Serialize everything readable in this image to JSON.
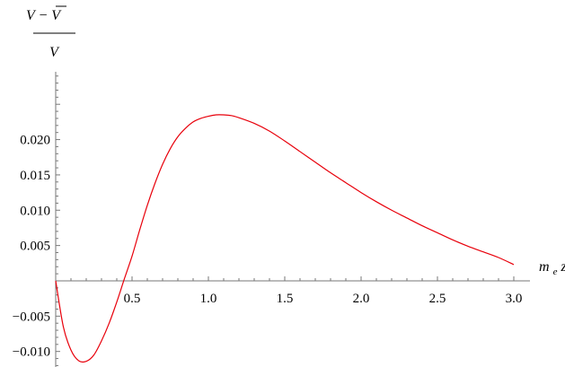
{
  "chart_data": {
    "type": "line",
    "title": "",
    "xlabel": {
      "main": "m",
      "subscript": "e",
      "suffix": "z"
    },
    "ylabel": {
      "numerator": "V − V",
      "numerator_overbar_symbol": "V",
      "denominator": "V"
    },
    "xlim": [
      0,
      3.0
    ],
    "ylim": [
      -0.0122,
      0.0296
    ],
    "grid": false,
    "legend": "none",
    "series_color": "#e8000b",
    "x_ticks": [
      "0.5",
      "1.0",
      "1.5",
      "2.0",
      "2.5",
      "3.0"
    ],
    "y_ticks": [
      "-0.010",
      "-0.005",
      "0.005",
      "0.010",
      "0.015",
      "0.020"
    ],
    "x_tick_values": [
      0.5,
      1.0,
      1.5,
      2.0,
      2.5,
      3.0
    ],
    "y_tick_values": [
      -0.01,
      -0.005,
      0.005,
      0.01,
      0.015,
      0.02
    ],
    "series": [
      {
        "x": [
          0.0,
          0.05,
          0.1,
          0.15,
          0.2,
          0.25,
          0.3,
          0.35,
          0.4,
          0.45,
          0.5,
          0.55,
          0.6,
          0.65,
          0.7,
          0.75,
          0.8,
          0.85,
          0.9,
          0.95,
          1.0,
          1.05,
          1.1,
          1.15,
          1.2,
          1.3,
          1.4,
          1.5,
          1.6,
          1.7,
          1.8,
          1.9,
          2.0,
          2.1,
          2.2,
          2.3,
          2.4,
          2.5,
          2.6,
          2.7,
          2.8,
          2.9,
          3.0
        ],
        "y": [
          0.0,
          -0.0065,
          -0.0098,
          -0.0113,
          -0.0114,
          -0.0105,
          -0.0085,
          -0.006,
          -0.003,
          0.0003,
          0.0035,
          0.0072,
          0.0107,
          0.0138,
          0.0165,
          0.0187,
          0.0204,
          0.0216,
          0.0225,
          0.023,
          0.0233,
          0.0235,
          0.0235,
          0.0234,
          0.0231,
          0.0223,
          0.0212,
          0.0198,
          0.0183,
          0.0168,
          0.0153,
          0.0139,
          0.0125,
          0.0112,
          0.01,
          0.0089,
          0.0078,
          0.0068,
          0.0058,
          0.0049,
          0.0041,
          0.0033,
          0.0023
        ]
      }
    ]
  }
}
